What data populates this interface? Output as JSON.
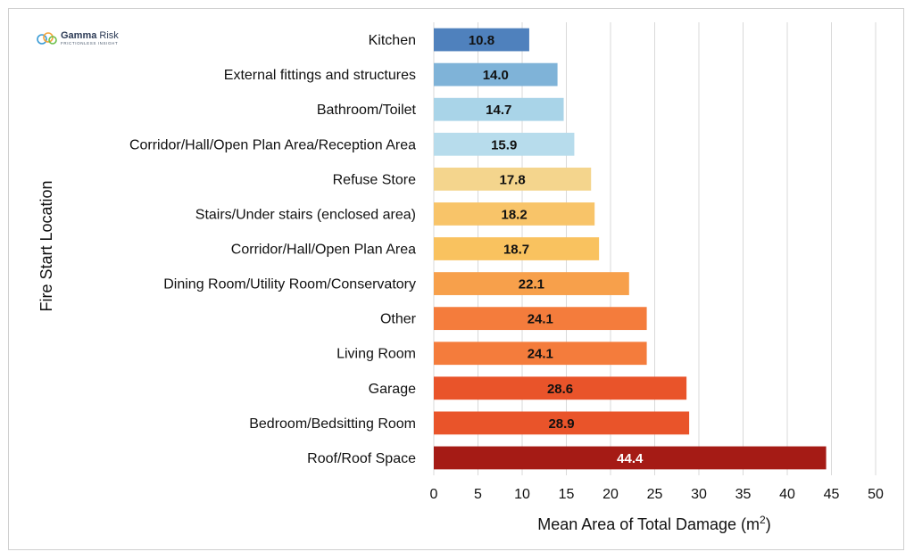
{
  "logo": {
    "name": "Gamma",
    "name_rest": " Risk",
    "tagline": "FRICTIONLESS INSIGHT"
  },
  "chart_data": {
    "type": "bar",
    "orientation": "horizontal",
    "categories": [
      "Kitchen",
      "External fittings and structures",
      "Bathroom/Toilet",
      "Corridor/Hall/Open Plan Area/Reception Area",
      "Refuse Store",
      "Stairs/Under stairs (enclosed area)",
      "Corridor/Hall/Open Plan Area",
      "Dining Room/Utility Room/Conservatory",
      "Other",
      "Living Room",
      "Garage",
      "Bedroom/Bedsitting Room",
      "Roof/Roof Space"
    ],
    "values": [
      10.8,
      14.0,
      14.7,
      15.9,
      17.8,
      18.2,
      18.7,
      22.1,
      24.1,
      24.1,
      28.6,
      28.9,
      44.4
    ],
    "value_labels": [
      "10.8",
      "14.0",
      "14.7",
      "15.9",
      "17.8",
      "18.2",
      "18.7",
      "22.1",
      "24.1",
      "24.1",
      "28.6",
      "28.9",
      "44.4"
    ],
    "colors": [
      "#4f81bd",
      "#7fb3d8",
      "#a9d4e8",
      "#b7dcec",
      "#f4d58d",
      "#f8c469",
      "#f9c25f",
      "#f7a04b",
      "#f47c3c",
      "#f47c3c",
      "#e9542a",
      "#e9542a",
      "#a51b15"
    ],
    "label_colors": [
      "#111111",
      "#111111",
      "#111111",
      "#111111",
      "#111111",
      "#111111",
      "#111111",
      "#111111",
      "#111111",
      "#111111",
      "#111111",
      "#111111",
      "#ffffff"
    ],
    "xlim": [
      0,
      50
    ],
    "xticks": [
      "0",
      "5",
      "10",
      "15",
      "20",
      "25",
      "30",
      "35",
      "40",
      "45",
      "50"
    ],
    "xlabel": "Mean Area of Total Damage (m",
    "xlabel_sup": "2",
    "xlabel_end": ")",
    "ylabel": "Fire Start Location",
    "grid": "vertical",
    "legend": "none"
  }
}
